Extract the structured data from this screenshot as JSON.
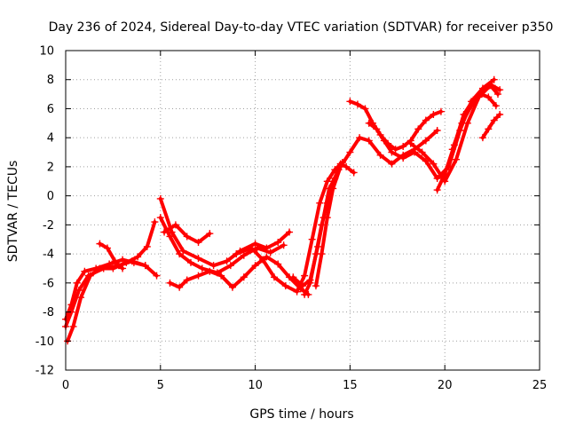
{
  "chart_data": {
    "type": "scatter",
    "title": "Day 236 of 2024, Sidereal Day-to-day VTEC variation (SDTVAR) for receiver p350",
    "xlabel": "GPS time / hours",
    "ylabel": "SDTVAR / TECUs",
    "xlim": [
      0,
      25
    ],
    "ylim": [
      -12,
      10
    ],
    "xticks": [
      0,
      5,
      10,
      15,
      20,
      25
    ],
    "yticks": [
      -12,
      -10,
      -8,
      -6,
      -4,
      -2,
      0,
      2,
      4,
      6,
      8,
      10
    ],
    "grid": true,
    "marker": "+",
    "color": "#ff0000",
    "series": [
      {
        "x": [
          0.0,
          0.3,
          0.7,
          1.2,
          2.0,
          2.8,
          3.5,
          4.2,
          4.8
        ],
        "y": [
          -9.0,
          -8.0,
          -6.5,
          -5.5,
          -5.0,
          -4.8,
          -4.5,
          -4.8,
          -5.5
        ]
      },
      {
        "x": [
          0.1,
          0.4,
          0.8,
          1.3,
          1.8,
          2.5,
          3.2,
          3.8,
          4.3,
          4.7
        ],
        "y": [
          -10.0,
          -9.0,
          -7.0,
          -5.5,
          -5.0,
          -5.0,
          -4.6,
          -4.2,
          -3.5,
          -1.8
        ]
      },
      {
        "x": [
          0.0,
          0.3,
          0.6,
          1.0,
          1.6,
          2.3,
          3.0,
          3.6,
          4.2
        ],
        "y": [
          -8.5,
          -7.5,
          -6.0,
          -5.2,
          -5.0,
          -4.7,
          -4.4,
          -4.6,
          -4.8
        ]
      },
      {
        "x": [
          1.8,
          2.2,
          2.6,
          3.0
        ],
        "y": [
          -3.3,
          -3.6,
          -4.5,
          -5.0
        ]
      },
      {
        "x": [
          5.0,
          5.6,
          6.2,
          7.0,
          7.8,
          8.5,
          9.2,
          10.0,
          10.6,
          11.2,
          11.8
        ],
        "y": [
          -0.2,
          -2.5,
          -3.8,
          -4.3,
          -4.8,
          -4.5,
          -3.8,
          -3.3,
          -3.6,
          -3.2,
          -2.5
        ]
      },
      {
        "x": [
          5.0,
          5.5,
          6.0,
          6.6,
          7.2,
          8.0,
          8.7,
          9.4,
          10.1,
          10.8,
          11.5
        ],
        "y": [
          -1.5,
          -2.8,
          -4.0,
          -4.6,
          -5.0,
          -5.3,
          -4.8,
          -4.1,
          -3.6,
          -3.9,
          -3.4
        ]
      },
      {
        "x": [
          5.5,
          6.0,
          6.4,
          7.0,
          7.6,
          8.2,
          8.8,
          9.4,
          10.0,
          10.6,
          11.2,
          11.8,
          12.4,
          12.8
        ],
        "y": [
          -6.0,
          -6.3,
          -5.8,
          -5.5,
          -5.2,
          -5.5,
          -6.3,
          -5.6,
          -4.8,
          -4.2,
          -4.7,
          -5.6,
          -6.4,
          -6.8
        ]
      },
      {
        "x": [
          5.2,
          5.8,
          6.4,
          7.0,
          7.6
        ],
        "y": [
          -2.5,
          -2.0,
          -2.8,
          -3.2,
          -2.6
        ]
      },
      {
        "x": [
          9.0,
          9.8,
          10.4,
          11.0,
          11.6,
          12.2,
          12.6,
          13.0,
          13.4,
          13.8,
          14.2,
          14.6
        ],
        "y": [
          -4.0,
          -3.6,
          -4.4,
          -5.6,
          -6.2,
          -6.6,
          -5.5,
          -3.0,
          -0.5,
          1.0,
          1.8,
          2.3
        ]
      },
      {
        "x": [
          12.0,
          12.5,
          12.9,
          13.3,
          13.6,
          13.9,
          14.2,
          14.5,
          14.8,
          15.2
        ],
        "y": [
          -5.6,
          -6.2,
          -5.8,
          -3.5,
          -1.5,
          0.5,
          1.2,
          2.2,
          2.0,
          1.6
        ]
      },
      {
        "x": [
          12.6,
          12.9,
          13.2,
          13.5,
          13.8,
          14.1,
          14.4
        ],
        "y": [
          -6.8,
          -6.0,
          -4.0,
          -2.0,
          -0.5,
          1.0,
          1.8
        ]
      },
      {
        "x": [
          13.2,
          13.5,
          13.8,
          14.1,
          14.5,
          15.0,
          15.5,
          16.0,
          16.6,
          17.2,
          17.8,
          18.4,
          19.0,
          19.6
        ],
        "y": [
          -6.2,
          -4.0,
          -1.5,
          0.5,
          2.0,
          3.0,
          4.0,
          3.8,
          2.8,
          2.2,
          2.8,
          3.2,
          3.8,
          4.5
        ]
      },
      {
        "x": [
          15.0,
          15.4,
          15.8,
          16.2,
          16.6,
          17.0,
          17.4,
          17.8,
          18.2,
          18.6,
          19.0,
          19.4,
          19.8
        ],
        "y": [
          6.5,
          6.3,
          6.0,
          5.0,
          4.2,
          3.6,
          3.2,
          3.4,
          3.8,
          4.6,
          5.2,
          5.6,
          5.8
        ]
      },
      {
        "x": [
          16.0,
          16.4,
          16.8,
          17.2,
          17.8,
          18.4,
          19.0,
          19.6,
          20.2,
          20.8,
          21.4,
          22.0,
          22.6
        ],
        "y": [
          5.0,
          4.6,
          3.8,
          3.0,
          2.6,
          3.0,
          2.4,
          1.2,
          2.0,
          4.5,
          6.5,
          7.4,
          8.0
        ]
      },
      {
        "x": [
          18.2,
          18.8,
          19.4,
          20.0,
          20.6,
          21.2,
          21.8,
          22.4,
          22.8
        ],
        "y": [
          3.6,
          3.0,
          2.2,
          1.0,
          2.5,
          5.0,
          6.8,
          7.6,
          7.0
        ]
      },
      {
        "x": [
          19.6,
          20.0,
          20.5,
          21.0,
          21.5,
          22.0,
          22.5,
          22.9
        ],
        "y": [
          0.4,
          1.5,
          3.5,
          5.6,
          6.6,
          7.2,
          7.6,
          7.3
        ]
      },
      {
        "x": [
          20.4,
          20.9,
          21.4,
          21.9,
          22.3,
          22.7
        ],
        "y": [
          3.2,
          5.0,
          6.2,
          7.0,
          6.8,
          6.2
        ]
      },
      {
        "x": [
          22.0,
          22.3,
          22.6,
          22.9
        ],
        "y": [
          4.0,
          4.6,
          5.2,
          5.6
        ]
      }
    ]
  }
}
